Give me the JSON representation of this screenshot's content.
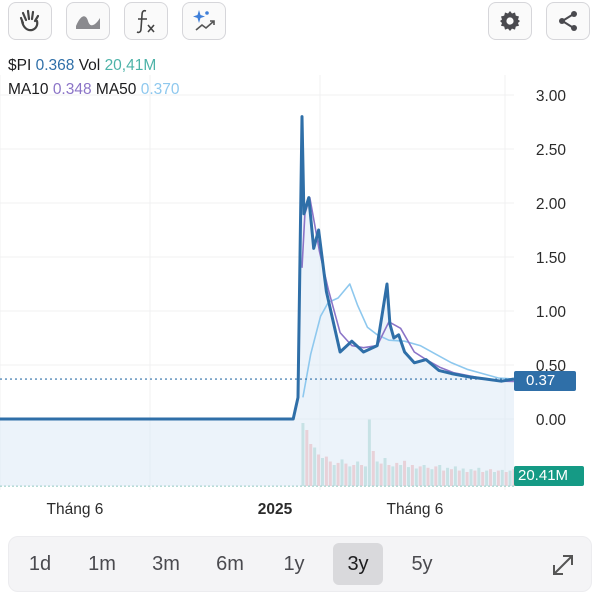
{
  "toolbar": {
    "left_icons": [
      "hand-icon",
      "wave-icon",
      "function-icon",
      "sparkle-trend-icon"
    ],
    "right_icons": [
      "gear-icon",
      "share-icon"
    ]
  },
  "legend": {
    "ticker": "$PI",
    "price": "0.368",
    "vol_label": "Vol",
    "vol": "20,41M",
    "ma10_label": "MA10",
    "ma10": "0.348",
    "ma50_label": "MA50",
    "ma50": "0.370"
  },
  "colors": {
    "price_line": "#2f6fa8",
    "ma10": "#8b74c7",
    "ma50": "#8ec8ee",
    "volume_up": "#9fd3c9",
    "volume_down": "#f3a6a6",
    "price_tag": "#2f6fa8",
    "vol_tag": "#159a85"
  },
  "price_tag": "0.37",
  "vol_tag": "20.41M",
  "chart_data": {
    "type": "line",
    "y_ticks": [
      "3.00",
      "2.50",
      "2.00",
      "1.50",
      "1.00",
      "0.50",
      "0.00"
    ],
    "ylim": [
      0,
      3.0
    ],
    "x_ticks": [
      "Tháng 6",
      "2025",
      "Tháng 6"
    ],
    "x_ticks_bold": [
      false,
      true,
      false
    ],
    "current_price": 0.37,
    "series": [
      {
        "name": "$PI",
        "x": [
          0,
          1,
          2,
          3,
          3.05,
          3.09,
          3.11,
          3.16,
          3.21,
          3.26,
          3.34,
          3.48,
          3.6,
          3.72,
          3.86,
          3.96,
          3.99,
          4.03,
          4.08,
          4.14,
          4.24,
          4.36,
          4.49,
          4.62,
          4.8,
          4.97,
          5.13,
          5.26
        ],
        "values": [
          0,
          0,
          0,
          0,
          0.2,
          2.8,
          1.9,
          2.05,
          1.58,
          1.75,
          1.18,
          0.62,
          0.72,
          0.62,
          0.68,
          1.25,
          0.88,
          0.75,
          0.78,
          0.62,
          0.52,
          0.55,
          0.45,
          0.42,
          0.39,
          0.37,
          0.35,
          0.37
        ]
      },
      {
        "name": "MA10",
        "x": [
          3.09,
          3.12,
          3.17,
          3.22,
          3.27,
          3.36,
          3.48,
          3.6,
          3.72,
          3.86,
          3.98,
          4.1,
          4.24,
          4.36,
          4.5,
          4.64,
          4.8,
          4.97,
          5.13,
          5.26
        ],
        "values": [
          1.4,
          1.9,
          2.05,
          1.8,
          1.55,
          1.2,
          0.8,
          0.68,
          0.66,
          0.68,
          0.9,
          0.84,
          0.62,
          0.55,
          0.48,
          0.43,
          0.4,
          0.37,
          0.35,
          0.348
        ]
      },
      {
        "name": "MA50",
        "x": [
          3.1,
          3.18,
          3.28,
          3.36,
          3.46,
          3.58,
          3.66,
          3.76,
          3.86,
          3.98,
          4.14,
          4.3,
          4.46,
          4.62,
          4.78,
          4.94,
          5.1,
          5.26
        ],
        "values": [
          0.2,
          0.6,
          0.95,
          1.08,
          1.12,
          1.25,
          1.05,
          0.85,
          0.78,
          0.73,
          0.72,
          0.68,
          0.6,
          0.52,
          0.46,
          0.42,
          0.38,
          0.37
        ]
      }
    ],
    "volume": {
      "x": [
        3.1,
        3.14,
        3.18,
        3.22,
        3.26,
        3.3,
        3.34,
        3.38,
        3.42,
        3.46,
        3.5,
        3.54,
        3.58,
        3.62,
        3.66,
        3.7,
        3.74,
        3.78,
        3.82,
        3.86,
        3.9,
        3.94,
        3.98,
        4.02,
        4.06,
        4.1,
        4.14,
        4.18,
        4.22,
        4.26,
        4.3,
        4.34,
        4.38,
        4.42,
        4.46,
        4.5,
        4.54,
        4.58,
        4.62,
        4.66,
        4.7,
        4.74,
        4.78,
        4.82,
        4.86,
        4.9,
        4.94,
        4.98,
        5.02,
        5.06,
        5.1,
        5.14,
        5.18,
        5.22,
        5.26
      ],
      "values": [
        0.9,
        0.8,
        0.6,
        0.55,
        0.45,
        0.4,
        0.42,
        0.35,
        0.3,
        0.33,
        0.38,
        0.32,
        0.28,
        0.3,
        0.35,
        0.3,
        0.28,
        0.95,
        0.5,
        0.35,
        0.32,
        0.4,
        0.3,
        0.28,
        0.33,
        0.3,
        0.36,
        0.27,
        0.3,
        0.25,
        0.28,
        0.3,
        0.26,
        0.24,
        0.28,
        0.3,
        0.22,
        0.26,
        0.24,
        0.28,
        0.22,
        0.25,
        0.2,
        0.24,
        0.22,
        0.26,
        0.2,
        0.22,
        0.24,
        0.2,
        0.22,
        0.23,
        0.2,
        0.22,
        0.24
      ],
      "colors": [
        "up",
        "down",
        "down",
        "up",
        "down",
        "up",
        "down",
        "down",
        "up",
        "down",
        "up",
        "down",
        "up",
        "down",
        "up",
        "down",
        "up",
        "up",
        "down",
        "up",
        "down",
        "up",
        "down",
        "up",
        "down",
        "up",
        "down",
        "up",
        "down",
        "up",
        "down",
        "up",
        "down",
        "up",
        "down",
        "up",
        "down",
        "up",
        "down",
        "up",
        "down",
        "up",
        "down",
        "up",
        "down",
        "up",
        "down",
        "up",
        "down",
        "up",
        "down",
        "up",
        "down",
        "up",
        "down"
      ]
    }
  },
  "ranges": [
    "1d",
    "1m",
    "3m",
    "6m",
    "1y",
    "3y",
    "5y"
  ],
  "active_range": "3y"
}
